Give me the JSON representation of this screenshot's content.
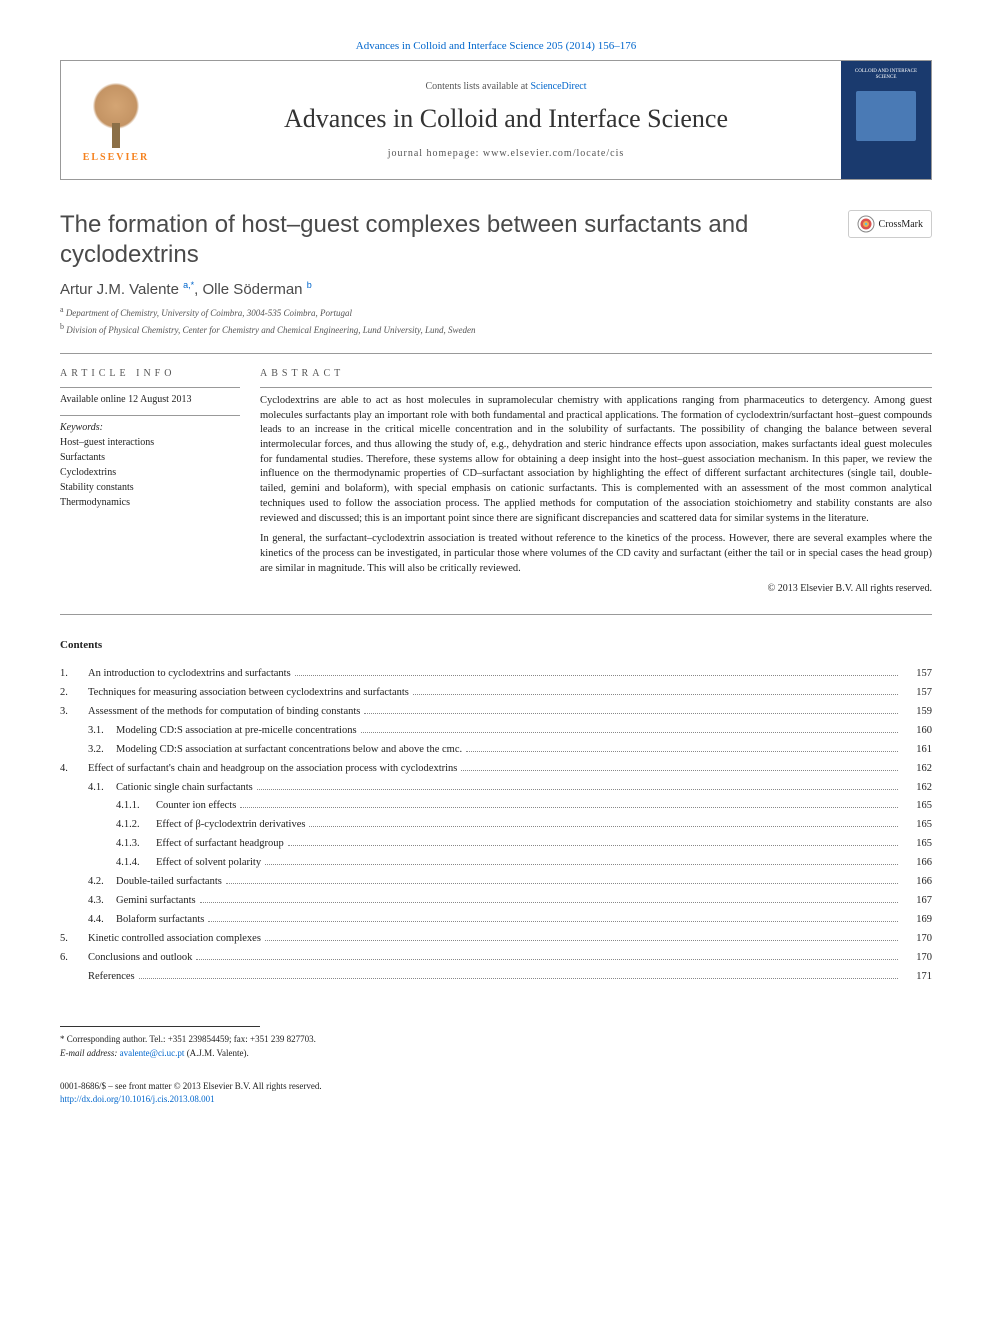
{
  "header": {
    "top_link": "Advances in Colloid and Interface Science 205 (2014) 156–176",
    "contents_line_pre": "Contents lists available at ",
    "contents_line_link": "ScienceDirect",
    "journal_title": "Advances in Colloid and Interface Science",
    "homepage_label": "journal homepage: www.elsevier.com/locate/cis",
    "elsevier": "ELSEVIER",
    "cover_text": "COLLOID AND INTERFACE SCIENCE"
  },
  "article": {
    "title": "The formation of host–guest complexes between surfactants and cyclodextrins",
    "crossmark": "CrossMark",
    "authors_html": "Artur J.M. Valente",
    "author1": "Artur J.M. Valente ",
    "author1_sup": "a,*",
    "sep": ", ",
    "author2": "Olle Söderman ",
    "author2_sup": "b",
    "affiliations": [
      {
        "sup": "a",
        "text": " Department of Chemistry, University of Coimbra, 3004-535 Coimbra, Portugal"
      },
      {
        "sup": "b",
        "text": " Division of Physical Chemistry, Center for Chemistry and Chemical Engineering, Lund University, Lund, Sweden"
      }
    ]
  },
  "info": {
    "heading": "article info",
    "available": "Available online 12 August 2013",
    "keywords_heading": "Keywords:",
    "keywords": [
      "Host–guest interactions",
      "Surfactants",
      "Cyclodextrins",
      "Stability constants",
      "Thermodynamics"
    ]
  },
  "abstract": {
    "heading": "abstract",
    "p1": "Cyclodextrins are able to act as host molecules in supramolecular chemistry with applications ranging from pharmaceutics to detergency. Among guest molecules surfactants play an important role with both fundamental and practical applications. The formation of cyclodextrin/surfactant host–guest compounds leads to an increase in the critical micelle concentration and in the solubility of surfactants. The possibility of changing the balance between several intermolecular forces, and thus allowing the study of, e.g., dehydration and steric hindrance effects upon association, makes surfactants ideal guest molecules for fundamental studies. Therefore, these systems allow for obtaining a deep insight into the host–guest association mechanism. In this paper, we review the influence on the thermodynamic properties of CD–surfactant association by highlighting the effect of different surfactant architectures (single tail, double-tailed, gemini and bolaform), with special emphasis on cationic surfactants. This is complemented with an assessment of the most common analytical techniques used to follow the association process. The applied methods for computation of the association stoichiometry and stability constants are also reviewed and discussed; this is an important point since there are significant discrepancies and scattered data for similar systems in the literature.",
    "p2": "In general, the surfactant–cyclodextrin association is treated without reference to the kinetics of the process. However, there are several examples where the kinetics of the process can be investigated, in particular those where volumes of the CD cavity and surfactant (either the tail or in special cases the head group) are similar in magnitude. This will also be critically reviewed.",
    "copyright": "© 2013 Elsevier B.V. All rights reserved."
  },
  "contents": {
    "heading": "Contents",
    "items": [
      {
        "level": 0,
        "num": "1.",
        "title": "An introduction to cyclodextrins and surfactants",
        "page": "157"
      },
      {
        "level": 0,
        "num": "2.",
        "title": "Techniques for measuring association between cyclodextrins and surfactants",
        "page": "157"
      },
      {
        "level": 0,
        "num": "3.",
        "title": "Assessment of the methods for computation of binding constants",
        "page": "159"
      },
      {
        "level": 1,
        "num": "3.1.",
        "title": "Modeling CD:S association at pre-micelle concentrations",
        "page": "160"
      },
      {
        "level": 1,
        "num": "3.2.",
        "title": "Modeling CD:S association at surfactant concentrations below and above the cmc.",
        "page": "161"
      },
      {
        "level": 0,
        "num": "4.",
        "title": "Effect of surfactant's chain and headgroup on the association process with cyclodextrins",
        "page": "162"
      },
      {
        "level": 1,
        "num": "4.1.",
        "title": "Cationic single chain surfactants",
        "page": "162"
      },
      {
        "level": 2,
        "num": "4.1.1.",
        "title": "Counter ion effects",
        "page": "165"
      },
      {
        "level": 2,
        "num": "4.1.2.",
        "title": "Effect of β-cyclodextrin derivatives",
        "page": "165"
      },
      {
        "level": 2,
        "num": "4.1.3.",
        "title": "Effect of surfactant headgroup",
        "page": "165"
      },
      {
        "level": 2,
        "num": "4.1.4.",
        "title": "Effect of solvent polarity",
        "page": "166"
      },
      {
        "level": 1,
        "num": "4.2.",
        "title": "Double-tailed surfactants",
        "page": "166"
      },
      {
        "level": 1,
        "num": "4.3.",
        "title": "Gemini surfactants",
        "page": "167"
      },
      {
        "level": 1,
        "num": "4.4.",
        "title": "Bolaform surfactants",
        "page": "169"
      },
      {
        "level": 0,
        "num": "5.",
        "title": "Kinetic controlled association complexes",
        "page": "170"
      },
      {
        "level": 0,
        "num": "6.",
        "title": "Conclusions and outlook",
        "page": "170"
      },
      {
        "level": 0,
        "num": "",
        "title": "References",
        "page": "171"
      }
    ]
  },
  "footnote": {
    "corr_label": "* Corresponding author. Tel.: +351 239854459; fax: +351 239 827703.",
    "email_label": "E-mail address: ",
    "email": "avalente@ci.uc.pt",
    "email_post": " (A.J.M. Valente)."
  },
  "footer": {
    "line1": "0001-8686/$ – see front matter © 2013 Elsevier B.V. All rights reserved.",
    "doi": "http://dx.doi.org/10.1016/j.cis.2013.08.001"
  },
  "colors": {
    "link": "#0066cc",
    "elsevier_orange": "#f5821f",
    "cover_blue": "#1a3a6e",
    "text": "#222222",
    "rule": "#999999"
  }
}
